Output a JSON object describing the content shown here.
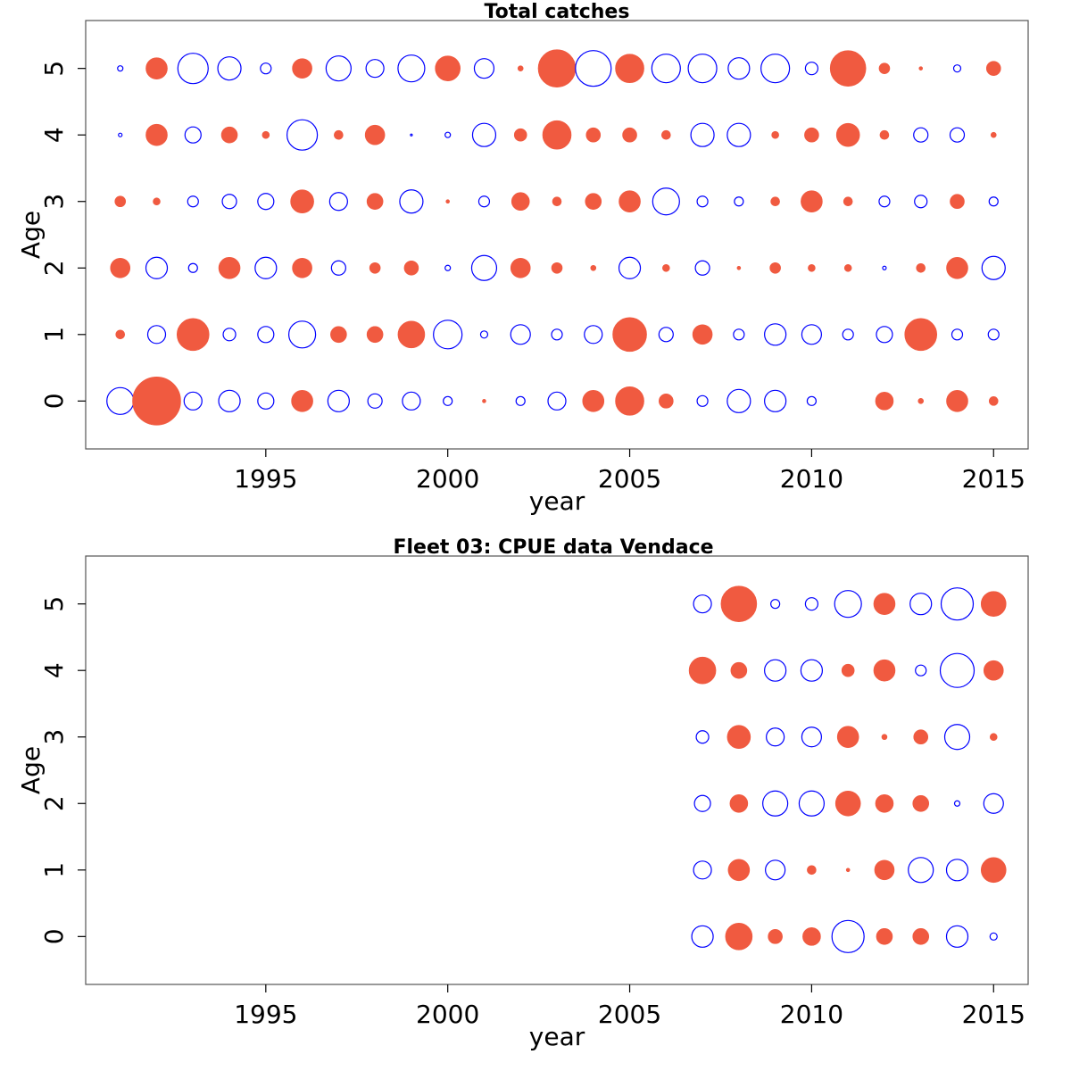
{
  "chart_data": [
    {
      "type": "bubble",
      "title": "Total catches",
      "xlabel": "year",
      "ylabel": "Age",
      "xlim": [
        1990.05,
        2015.95
      ],
      "ylim": [
        -0.72,
        5.72
      ],
      "x_ticks": [
        1995,
        2000,
        2005,
        2010,
        2015
      ],
      "y_ticks": [
        0,
        1,
        2,
        3,
        4,
        5
      ],
      "colors": {
        "positive": "#f05a40",
        "negative": "#0000ff"
      },
      "encoding": "filled = positive residual, open = negative residual, bubble radius ~ |residual|",
      "years": [
        1991,
        1992,
        1993,
        1994,
        1995,
        1996,
        1997,
        1998,
        1999,
        2000,
        2001,
        2002,
        2003,
        2004,
        2005,
        2006,
        2007,
        2008,
        2009,
        2010,
        2011,
        2012,
        2013,
        2014,
        2015
      ],
      "ages": [
        0,
        1,
        2,
        3,
        4,
        5
      ],
      "residuals": [
        [
          -15,
          27,
          -10,
          -12,
          -9,
          12,
          -12,
          -8,
          -10,
          -5,
          2,
          -5,
          -10,
          12,
          16,
          8,
          -6,
          -13,
          -12,
          -5,
          null,
          10,
          3,
          12,
          5
        ],
        [
          5,
          -10,
          18,
          -7,
          -9,
          -15,
          9,
          9,
          15,
          -16,
          -4,
          -11,
          -6,
          -10,
          19,
          -8,
          11,
          -6,
          -12,
          -11,
          -6,
          -9,
          18,
          -6,
          -6
        ],
        [
          11,
          -12,
          -5,
          12,
          -12,
          11,
          -8,
          6,
          8,
          -3,
          -14,
          11,
          6,
          3,
          -12,
          4,
          -8,
          2,
          6,
          4,
          4,
          -2,
          5,
          12,
          -13
        ],
        [
          6,
          4,
          -6,
          -8,
          -9,
          13,
          -10,
          9,
          -13,
          2,
          -6,
          10,
          5,
          9,
          12,
          -15,
          -6,
          -5,
          5,
          12,
          5,
          -6,
          -7,
          8,
          -5
        ],
        [
          -2,
          12,
          -9,
          9,
          4,
          -17,
          5,
          11,
          -1,
          -3,
          -13,
          7,
          16,
          8,
          8,
          5,
          -13,
          -13,
          4,
          8,
          13,
          5,
          -8,
          -8,
          3
        ],
        [
          -3,
          12,
          -17,
          -13,
          -6,
          11,
          -14,
          -10,
          -15,
          14,
          -11,
          3,
          21,
          -20,
          16,
          -16,
          -16,
          -12,
          -16,
          -7,
          20,
          6,
          2,
          -4,
          8
        ]
      ]
    },
    {
      "type": "bubble",
      "title": "Fleet 03:  CPUE data Vendace",
      "xlabel": "year",
      "ylabel": "Age",
      "xlim": [
        1990.05,
        2015.95
      ],
      "ylim": [
        -0.72,
        5.72
      ],
      "x_ticks": [
        1995,
        2000,
        2005,
        2010,
        2015
      ],
      "y_ticks": [
        0,
        1,
        2,
        3,
        4,
        5
      ],
      "colors": {
        "positive": "#f05a40",
        "negative": "#0000ff"
      },
      "encoding": "filled = positive residual, open = negative residual, bubble radius ~ |residual|",
      "years": [
        2007,
        2008,
        2009,
        2010,
        2011,
        2012,
        2013,
        2014,
        2015
      ],
      "ages": [
        0,
        1,
        2,
        3,
        4,
        5
      ],
      "residuals": [
        [
          -12,
          15,
          8,
          10,
          -18,
          9,
          9,
          -12,
          -4
        ],
        [
          -10,
          12,
          -11,
          5,
          2,
          11,
          -14,
          -12,
          14
        ],
        [
          -9,
          10,
          -14,
          -14,
          14,
          10,
          9,
          -3,
          -11
        ],
        [
          -7,
          13,
          -10,
          -11,
          12,
          3,
          8,
          -14,
          4
        ],
        [
          15,
          9,
          -12,
          -12,
          7,
          12,
          -6,
          -19,
          11
        ],
        [
          -10,
          20,
          -5,
          -7,
          -15,
          12,
          -12,
          -18,
          14
        ]
      ]
    }
  ]
}
